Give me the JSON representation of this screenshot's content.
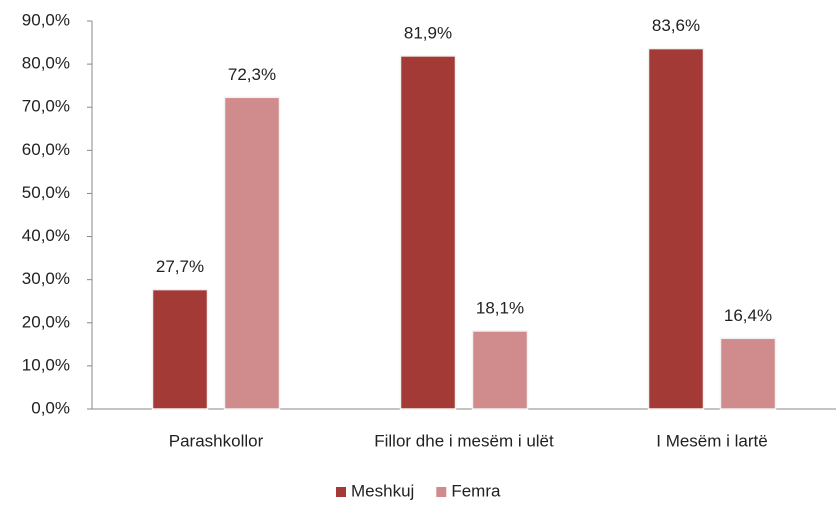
{
  "chart_data": {
    "type": "bar",
    "categories": [
      "Parashkollor",
      "Fillor dhe i mesëm i ulët",
      "I Mesëm i lartë"
    ],
    "series": [
      {
        "name": "Meshkuj",
        "color": "#a33a36",
        "values": [
          27.7,
          81.9,
          83.6
        ],
        "value_labels": [
          "27,7%",
          "81,9%",
          "83,6%"
        ]
      },
      {
        "name": "Femra",
        "color": "#d08c8c",
        "values": [
          72.3,
          18.1,
          16.4
        ],
        "value_labels": [
          "72,3%",
          "18,1%",
          "16,4%"
        ]
      }
    ],
    "ylim": [
      0,
      90
    ],
    "yticks": [
      {
        "value": 0,
        "label": "0,0%"
      },
      {
        "value": 10,
        "label": "10,0%"
      },
      {
        "value": 20,
        "label": "20,0%"
      },
      {
        "value": 30,
        "label": "30,0%"
      },
      {
        "value": 40,
        "label": "40,0%"
      },
      {
        "value": 50,
        "label": "50,0%"
      },
      {
        "value": 60,
        "label": "60,0%"
      },
      {
        "value": 70,
        "label": "70,0%"
      },
      {
        "value": 80,
        "label": "80,0%"
      },
      {
        "value": 90,
        "label": "90,0%"
      }
    ],
    "grid": false,
    "legend": "bottom"
  }
}
